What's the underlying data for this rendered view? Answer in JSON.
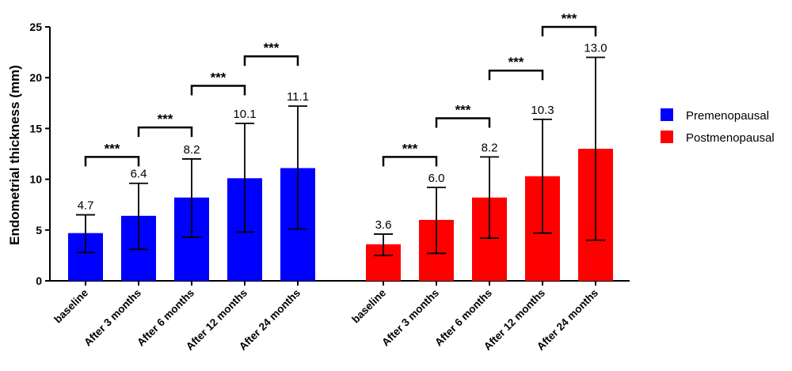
{
  "chart_data": {
    "type": "bar",
    "ylabel": "Endometrial thickness (mm)",
    "ylim": [
      0,
      25
    ],
    "yticks": [
      0,
      5,
      10,
      15,
      20,
      25
    ],
    "legend_position": "right",
    "significance_label": "***",
    "groups": [
      {
        "name": "Premenopausal",
        "color": "#0000ff",
        "categories": [
          "baseline",
          "After 3 months",
          "After 6 months",
          "After 12 months",
          "After 24 months"
        ],
        "values": [
          4.7,
          6.4,
          8.2,
          10.1,
          11.1
        ],
        "value_labels": [
          "4.7",
          "6.4",
          "8.2",
          "10.1",
          "11.1"
        ],
        "error_low": [
          2.8,
          3.1,
          4.3,
          4.8,
          5.1
        ],
        "error_high": [
          6.5,
          9.6,
          12.0,
          15.5,
          17.2
        ]
      },
      {
        "name": "Postmenopausal",
        "color": "#ff0000",
        "categories": [
          "baseline",
          "After 3 months",
          "After 6 months",
          "After 12 months",
          "After 24 months"
        ],
        "values": [
          3.6,
          6.0,
          8.2,
          10.3,
          13.0
        ],
        "value_labels": [
          "3.6",
          "6.0",
          "8.2",
          "10.3",
          "13.0"
        ],
        "error_low": [
          2.5,
          2.7,
          4.2,
          4.7,
          4.0
        ],
        "error_high": [
          4.6,
          9.2,
          12.2,
          15.9,
          22.0
        ]
      }
    ],
    "significance_brackets": [
      {
        "group": 0,
        "from": 0,
        "to": 1,
        "y": 12.2
      },
      {
        "group": 0,
        "from": 1,
        "to": 2,
        "y": 15.1
      },
      {
        "group": 0,
        "from": 2,
        "to": 3,
        "y": 19.2
      },
      {
        "group": 0,
        "from": 3,
        "to": 4,
        "y": 22.1
      },
      {
        "group": 1,
        "from": 0,
        "to": 1,
        "y": 12.2
      },
      {
        "group": 1,
        "from": 1,
        "to": 2,
        "y": 16.0
      },
      {
        "group": 1,
        "from": 2,
        "to": 3,
        "y": 20.7
      },
      {
        "group": 1,
        "from": 3,
        "to": 4,
        "y": 25.0
      }
    ]
  }
}
